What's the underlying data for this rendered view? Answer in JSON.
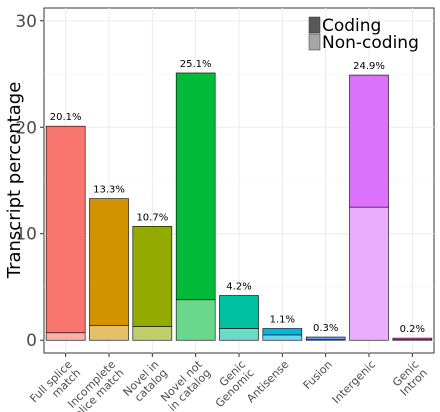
{
  "chart_data": {
    "type": "bar",
    "stacked": true,
    "title": "",
    "xlabel": "",
    "ylabel": "Transcript percentage",
    "ylim": [
      -1.2,
      31.2
    ],
    "yticks": [
      0,
      10,
      20,
      30
    ],
    "grid": true,
    "legend_position": "top-right",
    "categories": [
      [
        "Full splice",
        "match"
      ],
      [
        "Incomplete",
        "splice match"
      ],
      [
        "Novel in",
        "catalog"
      ],
      [
        "Novel not",
        "in catalog"
      ],
      [
        "Genic",
        "Genomic"
      ],
      [
        "Antisense"
      ],
      [
        "Fusion"
      ],
      [
        "Intergenic"
      ],
      [
        "Genic",
        "Intron"
      ]
    ],
    "colors": [
      "#f8766d",
      "#d39200",
      "#93aa00",
      "#00ba38",
      "#00c19f",
      "#00b9e3",
      "#619cff",
      "#db72fb",
      "#ff61c3"
    ],
    "series": [
      {
        "name": "Non-coding",
        "values": [
          0.7,
          1.4,
          1.3,
          3.8,
          1.1,
          0.5,
          0.05,
          12.5,
          0.05
        ]
      },
      {
        "name": "Coding",
        "values": [
          19.4,
          11.9,
          9.4,
          21.3,
          3.1,
          0.6,
          0.25,
          12.4,
          0.15
        ]
      }
    ],
    "totals": [
      20.1,
      13.3,
      10.7,
      25.1,
      4.2,
      1.1,
      0.3,
      24.9,
      0.2
    ],
    "data_labels": [
      "20.1%",
      "13.3%",
      "10.7%",
      "25.1%",
      "4.2%",
      "1.1%",
      "0.3%",
      "24.9%",
      "0.2%"
    ],
    "legend": [
      {
        "name": "Coding",
        "color": "#595959"
      },
      {
        "name": "Non-coding",
        "color": "#a6a6a6"
      }
    ]
  }
}
